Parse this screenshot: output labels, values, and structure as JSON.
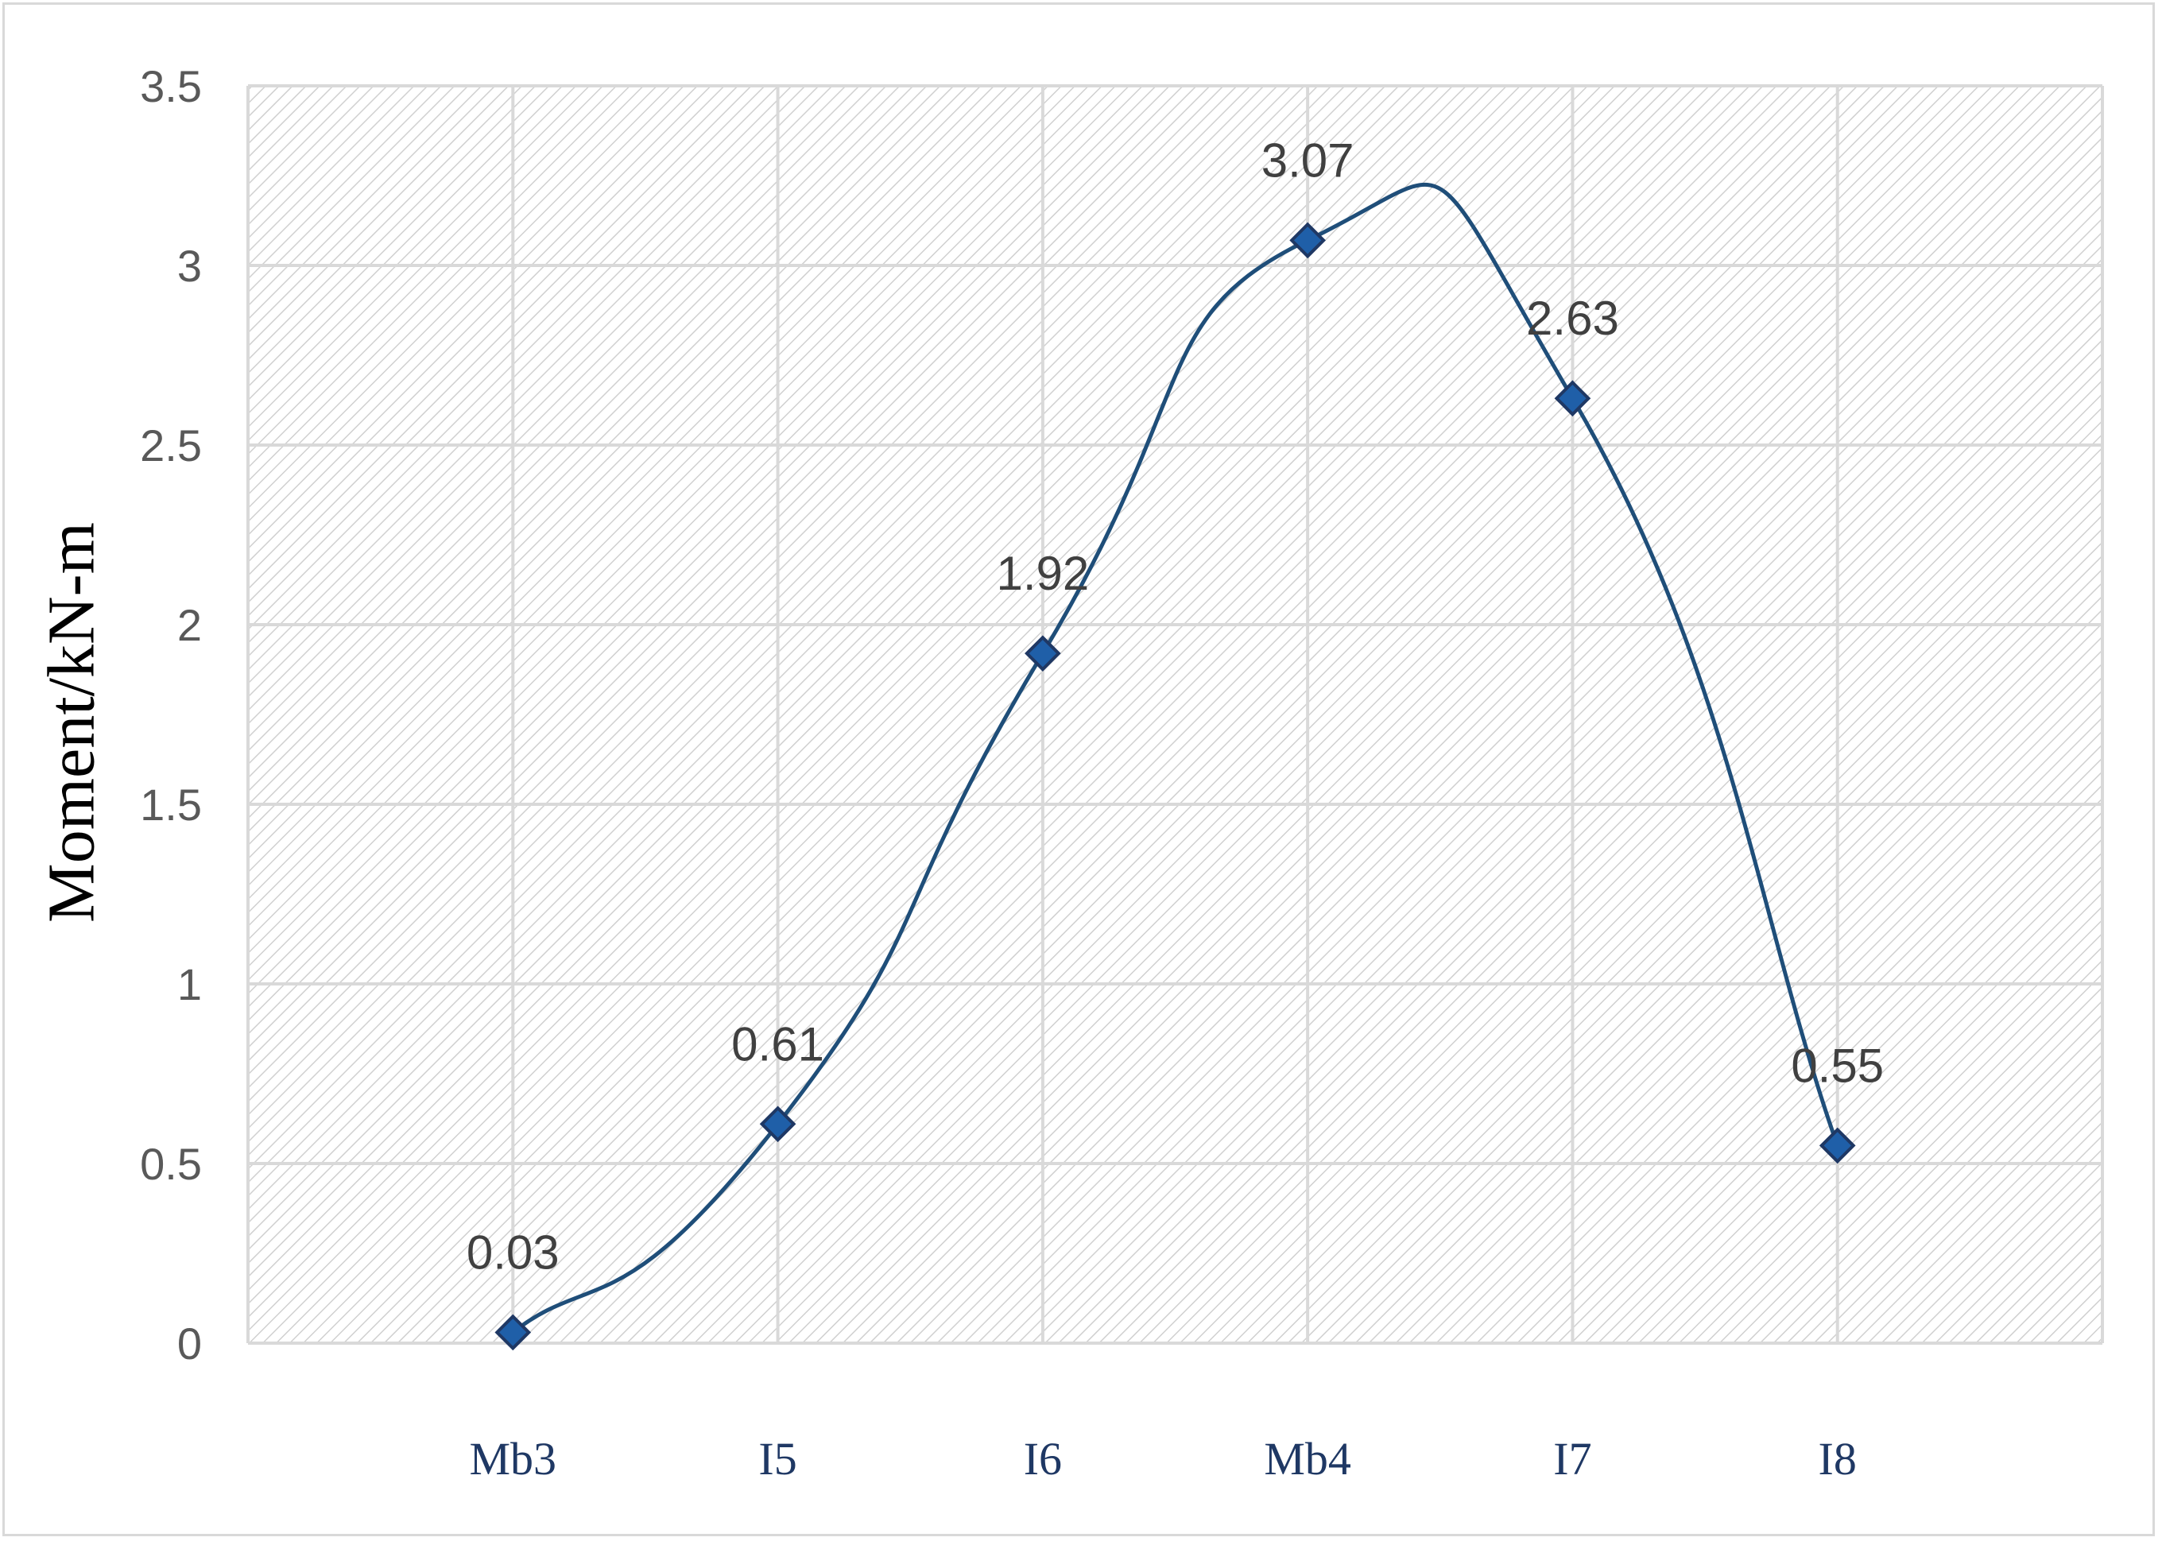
{
  "chart_data": {
    "type": "line",
    "smooth": true,
    "title": "",
    "xlabel": "",
    "ylabel": "Moment/kN-m",
    "categories": [
      "Mb3",
      "I5",
      "I6",
      "Mb4",
      "I7",
      "I8"
    ],
    "series": [
      {
        "values": [
          0.03,
          0.61,
          1.92,
          3.07,
          2.63,
          0.55
        ]
      }
    ],
    "data_labels": [
      "0.03",
      "0.61",
      "1.92",
      "3.07",
      "2.63",
      "0.55"
    ],
    "ylim": [
      0,
      3.5
    ],
    "yticks": [
      0,
      0.5,
      1,
      1.5,
      2,
      2.5,
      3,
      3.5
    ],
    "ytick_labels": [
      "0",
      "0.5",
      "1",
      "1.5",
      "2",
      "2.5",
      "3",
      "3.5"
    ],
    "grid": true,
    "marker": "diamond",
    "colors": {
      "line": "#1f4e79",
      "marker_fill": "#1f5fa8",
      "marker_edge": "#1f3864",
      "grid": "#d9d9d9",
      "hatch": "#d0d0d0"
    }
  }
}
